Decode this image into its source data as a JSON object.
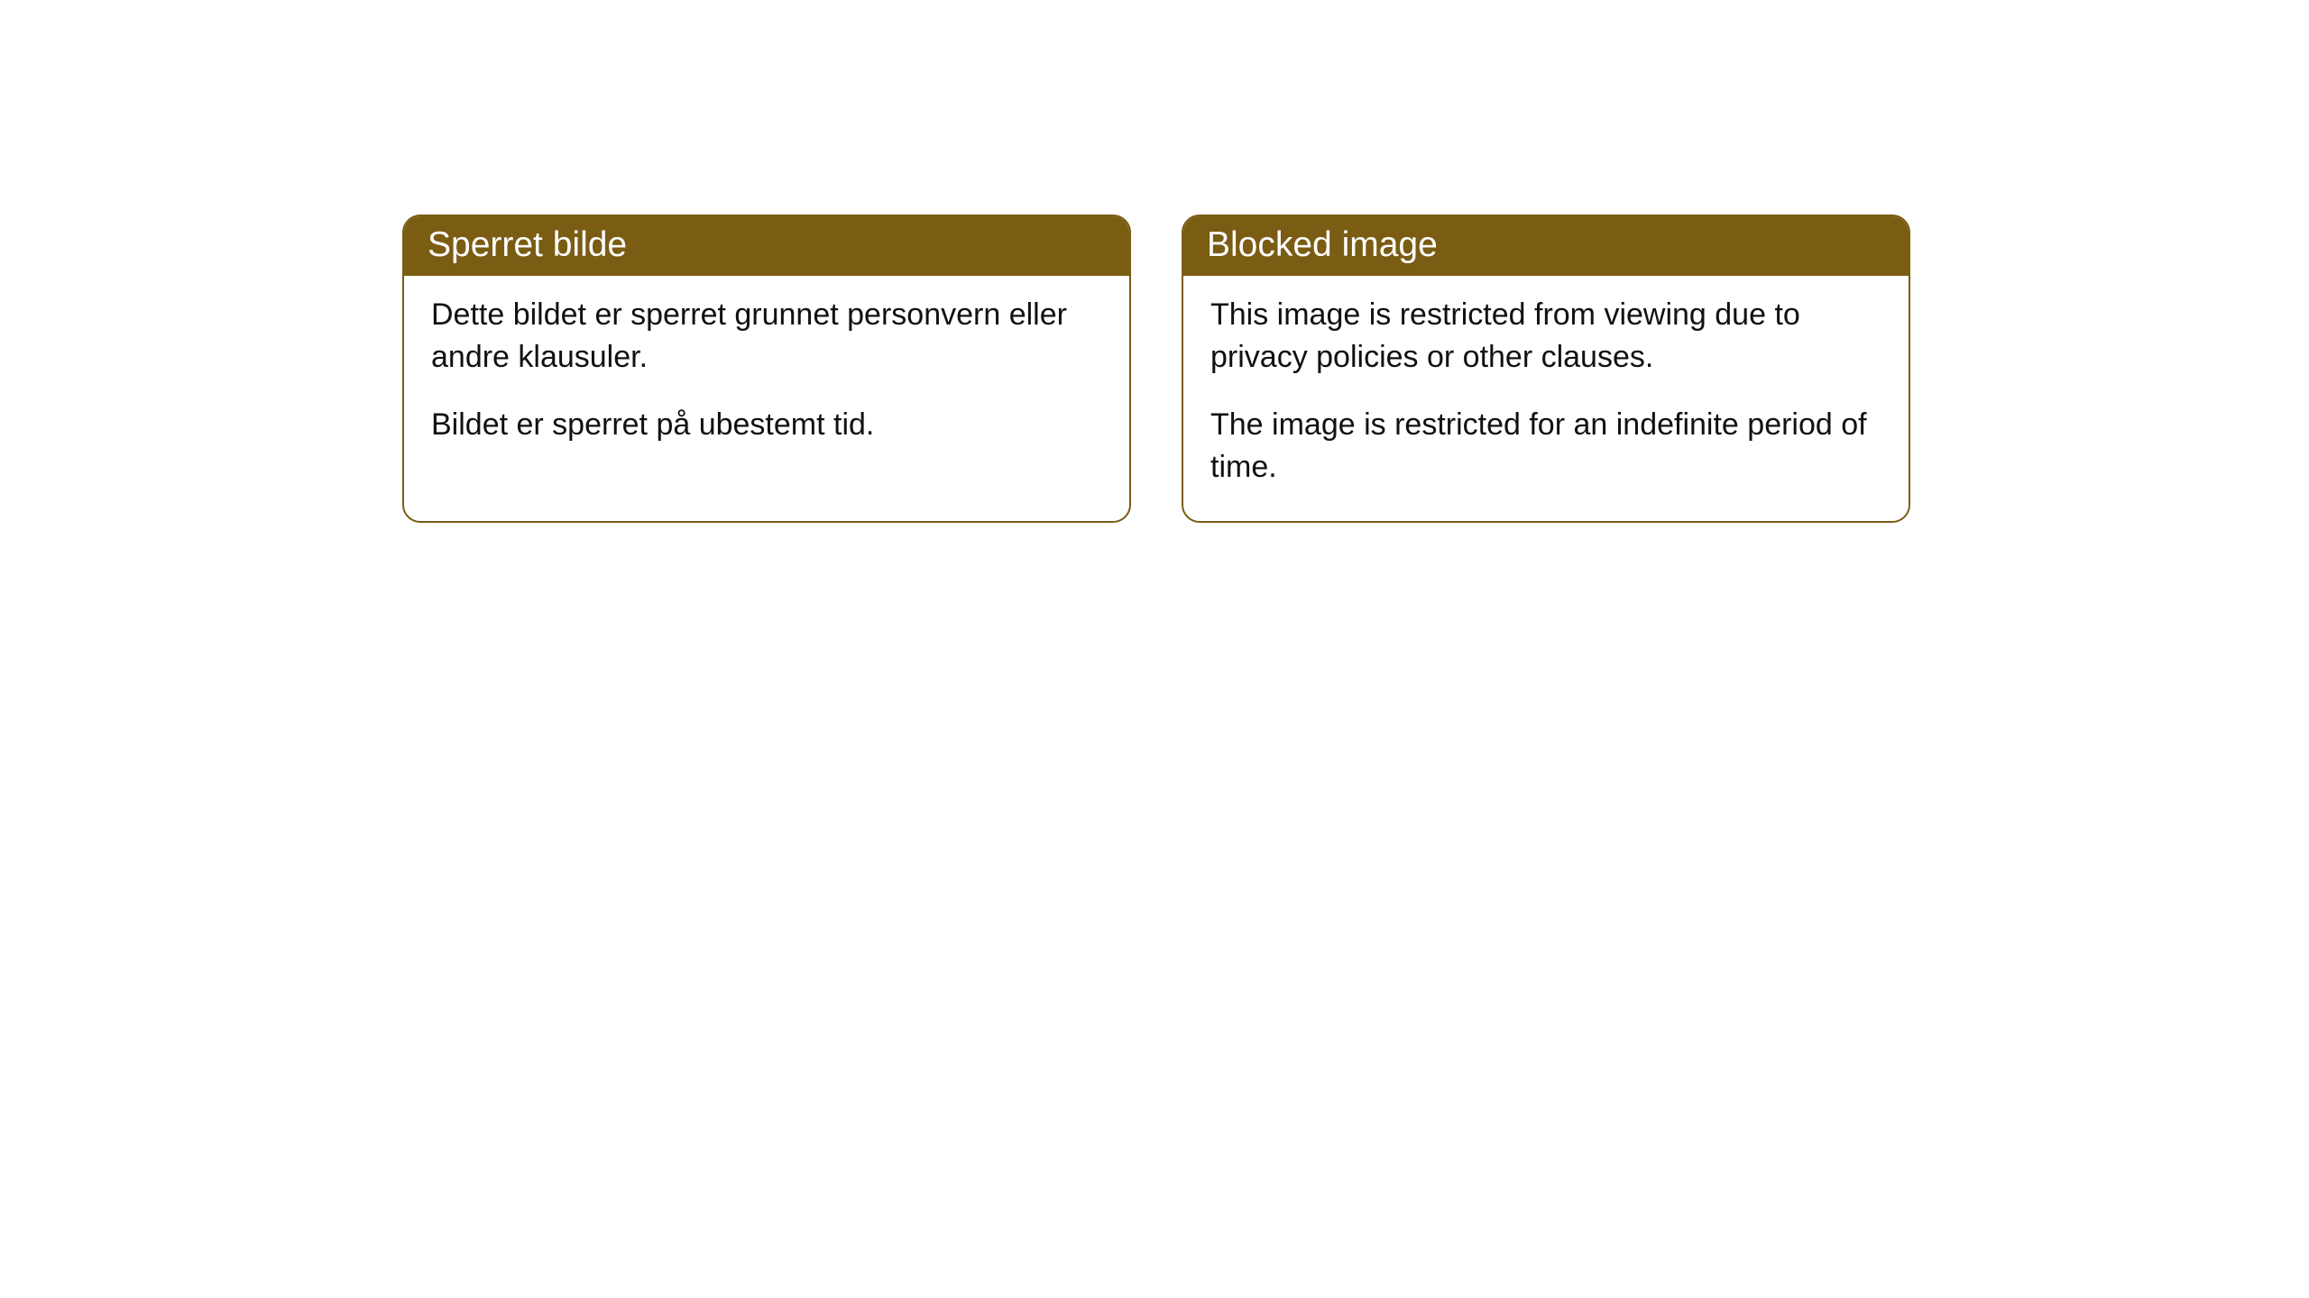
{
  "cards": [
    {
      "title": "Sperret bilde",
      "para1": "Dette bildet er sperret grunnet personvern eller andre klausuler.",
      "para2": "Bildet er sperret på ubestemt tid."
    },
    {
      "title": "Blocked image",
      "para1": "This image is restricted from viewing due to privacy policies or other clauses.",
      "para2": "The image is restricted for an indefinite period of time."
    }
  ],
  "style": {
    "header_bg": "#7a5c13",
    "header_text_color": "#ffffff",
    "border_color": "#7a5c13",
    "body_text_color": "#111111",
    "card_bg": "#ffffff",
    "page_bg": "#ffffff",
    "title_fontsize": 39,
    "body_fontsize": 34,
    "border_radius": 20
  }
}
